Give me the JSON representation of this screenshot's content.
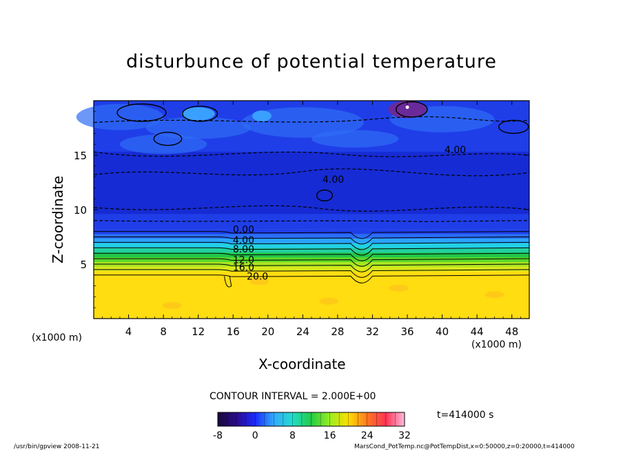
{
  "chart_data": {
    "type": "heatmap",
    "title": "disturbunce of potential temperature",
    "xlabel": "X-coordinate",
    "ylabel": "Z-coordinate",
    "x_unit_label": "(x1000 m)",
    "z_unit_label": "(x1000 m)",
    "xlim": [
      0,
      50
    ],
    "zlim": [
      0,
      20
    ],
    "x_ticks": [
      4,
      8,
      12,
      16,
      20,
      24,
      28,
      32,
      36,
      40,
      44,
      48
    ],
    "z_ticks": [
      5,
      10,
      15
    ],
    "contour_labels": [
      {
        "text": "4.00",
        "x": 41.5,
        "z": 15.5
      },
      {
        "text": "4.00",
        "x": 27.5,
        "z": 12.8
      },
      {
        "text": "0.00",
        "x": 17.2,
        "z": 8.2
      },
      {
        "text": "4.00",
        "x": 17.2,
        "z": 7.2
      },
      {
        "text": "8.00",
        "x": 17.2,
        "z": 6.4
      },
      {
        "text": "12.0",
        "x": 17.2,
        "z": 5.4
      },
      {
        "text": "16.0",
        "x": 17.2,
        "z": 4.7
      },
      {
        "text": "20.0",
        "x": 18.8,
        "z": 3.9
      }
    ],
    "contour_interval_label": "CONTOUR INTERVAL = 2.000E+00",
    "colorbar": {
      "min": -8,
      "max": 32,
      "tick_labels": [
        "-8",
        "0",
        "8",
        "16",
        "24",
        "32"
      ],
      "colors": [
        "#1a0a3a",
        "#2a0a8a",
        "#1a2aff",
        "#33aaff",
        "#22ddcc",
        "#22cc44",
        "#99ee22",
        "#ffdd00",
        "#ff7722",
        "#ff3355",
        "#ffbbdd"
      ]
    },
    "field_colors": {
      "upper": "#1f3ee8",
      "upper_dark": "#1426cc",
      "upper_light": "#2f6cf5",
      "cyan_patch": "#3aa0ff",
      "purple_spot": "#6a2a9a",
      "bottom": "#ffdd11"
    },
    "time_label": "t=414000 s"
  },
  "footer": {
    "left": "/usr/bin/gpview   2008-11-21",
    "right": "MarsCond_PotTemp.nc@PotTempDist,x=0:50000,z=0:20000,t=414000"
  }
}
